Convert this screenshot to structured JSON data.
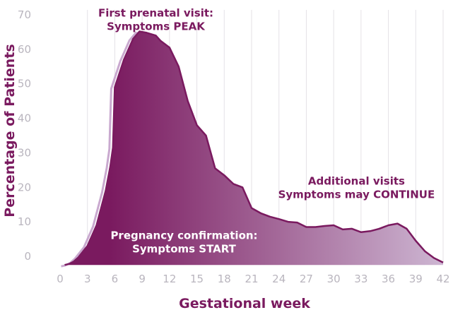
{
  "chart_data": {
    "type": "area",
    "xlabel": "Gestational week",
    "ylabel": "Percentage of Patients",
    "xlim": [
      0,
      42
    ],
    "ylim": [
      0,
      70
    ],
    "x_ticks": [
      0,
      3,
      6,
      9,
      12,
      15,
      18,
      21,
      24,
      27,
      30,
      33,
      36,
      39,
      42
    ],
    "y_ticks": [
      0,
      10,
      20,
      30,
      40,
      50,
      60,
      70
    ],
    "grid": "vertical",
    "legend": "none",
    "series": [
      {
        "x": [
          0.5,
          1,
          1.5,
          2,
          3,
          4,
          5,
          5.5,
          5.8,
          6,
          7,
          8,
          8.7,
          9.5,
          10.5,
          11,
          12,
          13,
          14,
          15,
          16,
          17,
          18,
          19,
          20,
          21,
          22,
          23,
          24,
          25,
          26,
          27,
          28,
          29,
          30,
          31,
          32,
          33,
          34,
          35,
          36,
          37,
          38,
          39,
          40,
          41,
          42
        ],
        "values": [
          -2.5,
          -2.2,
          -1.5,
          -0.3,
          3,
          9,
          19,
          26,
          31.5,
          49,
          57,
          63,
          65.2,
          64.8,
          64,
          62.5,
          60.5,
          55,
          45,
          38,
          35,
          25.5,
          23.5,
          21,
          20,
          14,
          12.5,
          11.5,
          10.8,
          10,
          9.8,
          8.5,
          8.5,
          8.8,
          9,
          7.8,
          8,
          7,
          7.3,
          8,
          9,
          9.5,
          8,
          4.5,
          1.5,
          -0.5,
          -1.8
        ]
      }
    ],
    "annotations": [
      {
        "lines": [
          "First prenatal visit:",
          "Symptoms PEAK"
        ],
        "x_week": 10.5,
        "y_value": 69.5
      },
      {
        "lines": [
          "Additional visits",
          "Symptoms may CONTINUE"
        ],
        "x_week": 32.5,
        "y_value": 20.8
      },
      {
        "lines": [
          "Pregnancy confirmation:",
          "Symptoms START"
        ],
        "x_week": 13.6,
        "y_value": 5
      }
    ],
    "colors": {
      "area_gradient": [
        "#7a1a5f",
        "#cdb6d2"
      ],
      "line": "#7a1a5f",
      "shadow_line": "#c9a9cf",
      "grid": "#e4e1e6",
      "tick_label": "#b9b5be",
      "title": "#7a1a5f"
    }
  }
}
